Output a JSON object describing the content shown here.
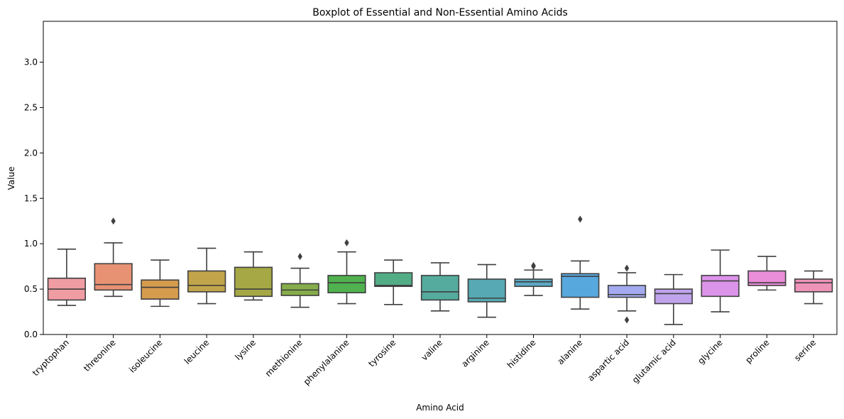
{
  "chart_data": {
    "type": "box",
    "title": "Boxplot of Essential and Non-Essential Amino Acids",
    "xlabel": "Amino Acid",
    "ylabel": "Value",
    "ylim": [
      0,
      3.45
    ],
    "yticks": [
      0.0,
      0.5,
      1.0,
      1.5,
      2.0,
      2.5,
      3.0
    ],
    "ytick_labels": [
      "0.0",
      "0.5",
      "1.0",
      "1.5",
      "2.0",
      "2.5",
      "3.0"
    ],
    "grid": false,
    "categories": [
      "tryptophan",
      "threonine",
      "isoleucine",
      "leucine",
      "lysine",
      "methionine",
      "phenylalanine",
      "tyrosine",
      "valine",
      "arginine",
      "histidine",
      "alanine",
      "aspartic acid",
      "glutamic acid",
      "glycine",
      "proline",
      "serine"
    ],
    "colors": [
      "#ef9ca3",
      "#e89274",
      "#d69c4e",
      "#c2a54b",
      "#a5a844",
      "#86ad4a",
      "#4fb24f",
      "#52ad86",
      "#55ab9d",
      "#57a9b3",
      "#5ba8c4",
      "#57a8dd",
      "#a3aaf0",
      "#c1a3ed",
      "#dc93ea",
      "#ea8ed9",
      "#ee94b8"
    ],
    "boxes": [
      {
        "whisker_low": 0.32,
        "q1": 0.38,
        "median": 0.5,
        "q3": 0.62,
        "whisker_high": 0.94,
        "fliers": []
      },
      {
        "whisker_low": 0.42,
        "q1": 0.49,
        "median": 0.55,
        "q3": 0.78,
        "whisker_high": 1.01,
        "fliers": [
          1.25
        ]
      },
      {
        "whisker_low": 0.31,
        "q1": 0.39,
        "median": 0.52,
        "q3": 0.6,
        "whisker_high": 0.82,
        "fliers": []
      },
      {
        "whisker_low": 0.34,
        "q1": 0.47,
        "median": 0.54,
        "q3": 0.7,
        "whisker_high": 0.95,
        "fliers": []
      },
      {
        "whisker_low": 0.38,
        "q1": 0.42,
        "median": 0.5,
        "q3": 0.74,
        "whisker_high": 0.91,
        "fliers": []
      },
      {
        "whisker_low": 0.3,
        "q1": 0.43,
        "median": 0.49,
        "q3": 0.56,
        "whisker_high": 0.73,
        "fliers": [
          0.86
        ]
      },
      {
        "whisker_low": 0.34,
        "q1": 0.46,
        "median": 0.57,
        "q3": 0.65,
        "whisker_high": 0.91,
        "fliers": [
          1.01
        ]
      },
      {
        "whisker_low": 0.33,
        "q1": 0.53,
        "median": 0.54,
        "q3": 0.68,
        "whisker_high": 0.82,
        "fliers": []
      },
      {
        "whisker_low": 0.26,
        "q1": 0.38,
        "median": 0.47,
        "q3": 0.65,
        "whisker_high": 0.79,
        "fliers": []
      },
      {
        "whisker_low": 0.19,
        "q1": 0.36,
        "median": 0.4,
        "q3": 0.61,
        "whisker_high": 0.77,
        "fliers": []
      },
      {
        "whisker_low": 0.43,
        "q1": 0.53,
        "median": 0.58,
        "q3": 0.61,
        "whisker_high": 0.71,
        "fliers": [
          0.75,
          0.76
        ]
      },
      {
        "whisker_low": 0.28,
        "q1": 0.41,
        "median": 0.64,
        "q3": 0.67,
        "whisker_high": 0.81,
        "fliers": [
          1.27
        ]
      },
      {
        "whisker_low": 0.26,
        "q1": 0.41,
        "median": 0.44,
        "q3": 0.54,
        "whisker_high": 0.68,
        "fliers": [
          0.73,
          0.16
        ]
      },
      {
        "whisker_low": 0.11,
        "q1": 0.34,
        "median": 0.45,
        "q3": 0.5,
        "whisker_high": 0.66,
        "fliers": []
      },
      {
        "whisker_low": 0.25,
        "q1": 0.42,
        "median": 0.59,
        "q3": 0.65,
        "whisker_high": 0.93,
        "fliers": []
      },
      {
        "whisker_low": 0.49,
        "q1": 0.54,
        "median": 0.57,
        "q3": 0.7,
        "whisker_high": 0.86,
        "fliers": []
      },
      {
        "whisker_low": 0.34,
        "q1": 0.47,
        "median": 0.57,
        "q3": 0.61,
        "whisker_high": 0.7,
        "fliers": []
      }
    ]
  }
}
